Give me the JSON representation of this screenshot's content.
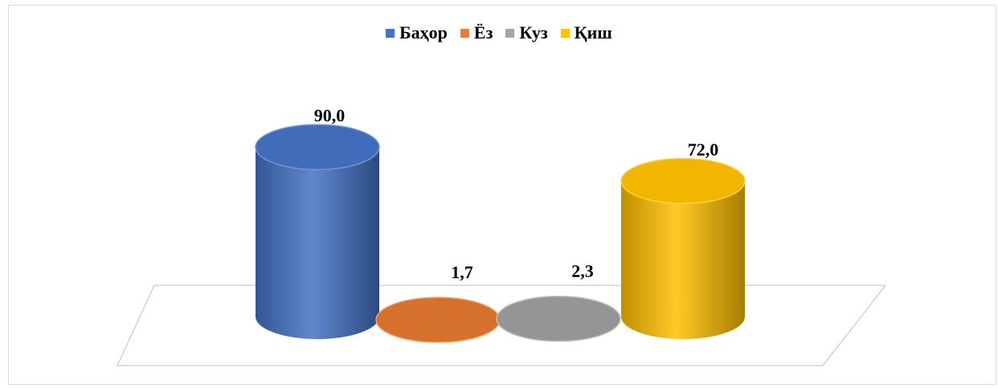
{
  "chart_data": {
    "type": "bar",
    "style": "3d-cylinder",
    "categories": [
      "Баҳор",
      "Ёз",
      "Куз",
      "Қиш"
    ],
    "series": [
      {
        "name": "Баҳор",
        "values": [
          90.0,
          null,
          null,
          null
        ],
        "color": "#4472c4"
      },
      {
        "name": "Ёз",
        "values": [
          null,
          1.7,
          null,
          null
        ],
        "color": "#ed7d31"
      },
      {
        "name": "Куз",
        "values": [
          null,
          null,
          2.3,
          null
        ],
        "color": "#a5a5a5"
      },
      {
        "name": "Қиш",
        "values": [
          null,
          null,
          null,
          72.0
        ],
        "color": "#ffc000"
      }
    ],
    "values": [
      90.0,
      1.7,
      2.3,
      72.0
    ],
    "data_labels": [
      "90,0",
      "1,7",
      "2,3",
      "72,0"
    ],
    "colors": [
      "#4472c4",
      "#ed7d31",
      "#a5a5a5",
      "#ffc000"
    ],
    "legend_position": "top",
    "grid": false
  }
}
